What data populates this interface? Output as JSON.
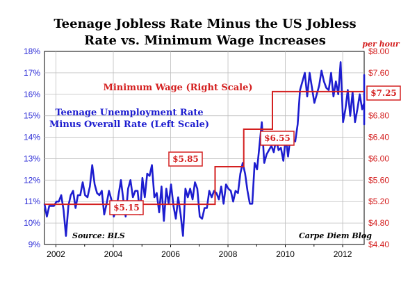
{
  "chart_data": {
    "type": "line",
    "title": "Teenage Jobless Rate Minus the US Jobless",
    "subtitle": "Rate vs. Minimum Wage Increases",
    "right_unit_label": "per hour",
    "source": "Source: BLS",
    "credit": "Carpe Diem Blog",
    "annotations": {
      "wage_series": "Minimum Wage (Right Scale)",
      "gap_series_line1": "Teenage Unemployment Rate",
      "gap_series_line2": "Minus Overall Rate (Left Scale)"
    },
    "grid": true,
    "x_range": [
      2001.6,
      2012.75
    ],
    "x_ticks": [
      "2002",
      "2004",
      "2006",
      "2008",
      "2010",
      "2012"
    ],
    "x_tick_values": [
      2002,
      2004,
      2006,
      2008,
      2010,
      2012
    ],
    "left_axis": {
      "min": 9,
      "max": 18,
      "ticks": [
        "9%",
        "10%",
        "11%",
        "12%",
        "13%",
        "14%",
        "15%",
        "16%",
        "17%",
        "18%"
      ],
      "color": "#2b2bd6"
    },
    "right_axis": {
      "min": 4.4,
      "max": 8.0,
      "ticks": [
        "$4.40",
        "$4.80",
        "$5.20",
        "$5.60",
        "$6.00",
        "$6.40",
        "$6.80",
        "$7.20",
        "$7.60",
        "$8.00"
      ],
      "color": "#d42020"
    },
    "series": [
      {
        "axis": "left",
        "color": "#1d1dcf",
        "start": 2001.6,
        "step": 0.0833,
        "values": [
          10.9,
          10.3,
          10.8,
          10.8,
          10.8,
          11.0,
          11.0,
          11.3,
          10.6,
          9.4,
          10.8,
          11.3,
          11.5,
          10.7,
          11.3,
          11.3,
          11.9,
          11.3,
          11.2,
          11.7,
          12.7,
          11.8,
          11.4,
          11.3,
          11.5,
          10.4,
          10.9,
          11.5,
          11.1,
          10.3,
          10.6,
          11.3,
          12.0,
          11.1,
          10.3,
          11.6,
          12.0,
          11.2,
          11.5,
          11.5,
          10.4,
          12.1,
          11.2,
          12.3,
          12.2,
          12.7,
          11.2,
          11.4,
          10.5,
          11.7,
          10.1,
          11.6,
          10.9,
          11.8,
          10.8,
          10.2,
          11.2,
          10.4,
          9.4,
          11.6,
          11.2,
          11.6,
          11.1,
          11.9,
          11.6,
          10.3,
          10.2,
          10.7,
          10.7,
          11.5,
          11.2,
          11.5,
          11.4,
          11.1,
          11.7,
          10.9,
          11.8,
          11.6,
          11.5,
          11.0,
          11.5,
          11.4,
          12.3,
          12.8,
          12.3,
          11.5,
          10.9,
          10.9,
          12.8,
          12.5,
          13.6,
          14.7,
          12.8,
          13.2,
          13.4,
          13.6,
          13.3,
          13.9,
          13.4,
          13.5,
          12.9,
          14.0,
          13.1,
          14.1,
          13.9,
          13.8,
          14.6,
          16.2,
          16.6,
          17.0,
          15.9,
          17.0,
          16.3,
          15.6,
          16.0,
          16.4,
          17.1,
          16.6,
          16.3,
          16.2,
          17.0,
          15.9,
          16.6,
          16.0,
          17.5,
          14.7,
          15.3,
          16.2,
          15.0,
          16.1,
          14.7,
          15.3,
          16.0,
          15.3,
          15.6,
          15.9,
          15.1,
          14.6,
          15.0,
          15.6,
          16.9,
          16.3,
          15.9,
          16.8,
          15.6,
          15.6,
          16.4,
          15.9,
          15.8,
          15.8,
          15.5
        ]
      },
      {
        "axis": "right",
        "color": "#d42020",
        "type": "step",
        "steps": [
          {
            "from": 2001.6,
            "to": 2007.55,
            "value": 5.15,
            "label": "$5.15"
          },
          {
            "from": 2007.55,
            "to": 2008.55,
            "value": 5.85,
            "label": "$5.85"
          },
          {
            "from": 2008.55,
            "to": 2009.55,
            "value": 6.55,
            "label": "$6.55"
          },
          {
            "from": 2009.55,
            "to": 2012.75,
            "value": 7.25,
            "label": "$7.25"
          }
        ]
      }
    ]
  }
}
